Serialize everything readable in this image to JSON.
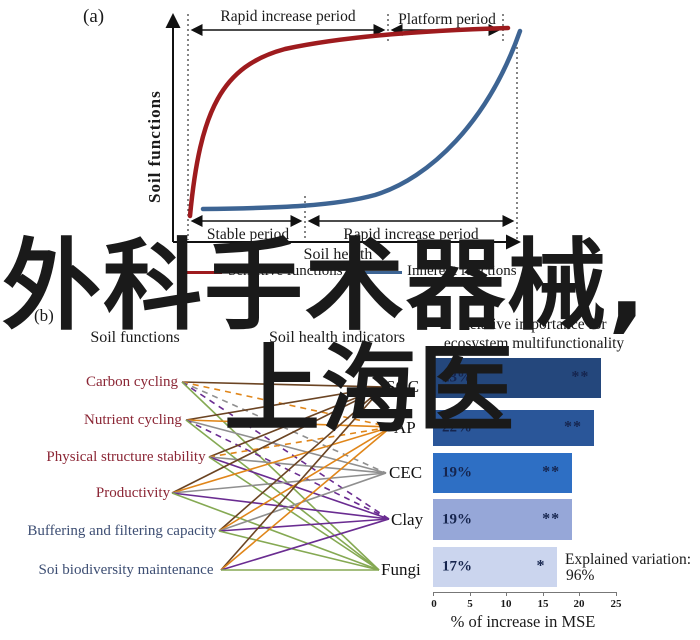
{
  "watermark": {
    "line1": "外科手术器械,",
    "line2": "上海医",
    "color": "#3B9AF8"
  },
  "panel_a": {
    "label": "(a)",
    "y_axis_label": "Soil functions",
    "x_axis_label": "Soil health",
    "period_top_1": "Rapid increase period",
    "period_top_2": "Platform period",
    "period_bottom_1": "Stable period",
    "period_bottom_2": "Rapid increase period",
    "legend": [
      {
        "label": "Sensitive functions",
        "color": "#9E1B1E"
      },
      {
        "label": "Inherent functions",
        "color": "#3D6493"
      }
    ]
  },
  "panel_b": {
    "label": "(b)",
    "col1_header": "Soil functions",
    "col2_header": "Soil health indicators",
    "col3_header_line1": "Relative importance for",
    "col3_header_line2": "ecosystem multifunctionality",
    "functions": [
      {
        "id": "carbon",
        "label": "Carbon cycling",
        "color": "#8B2635"
      },
      {
        "id": "nutrient",
        "label": "Nutrient cycling",
        "color": "#8B2635"
      },
      {
        "id": "physical",
        "label": "Physical structure stability",
        "color": "#8B2635"
      },
      {
        "id": "productivity",
        "label": "Productivity",
        "color": "#8B2635"
      },
      {
        "id": "buffering",
        "label": "Buffering and filtering capacity",
        "color": "#3D4E73"
      },
      {
        "id": "biodiversity",
        "label": "Soi biodiversity maintenance",
        "color": "#3D4E73"
      }
    ],
    "indicators": [
      "SOC",
      "AP",
      "CEC",
      "Clay",
      "Fungi"
    ],
    "network": {
      "colors_by_indicator": {
        "soc": "#6B4423",
        "ap": "#E0861A",
        "cec": "#8F8F8F",
        "clay": "#6A2C91",
        "fungi": "#85A953"
      },
      "edges": [
        {
          "from": "carbon",
          "to": "soc",
          "dashed": false
        },
        {
          "from": "carbon",
          "to": "ap",
          "dashed": true
        },
        {
          "from": "carbon",
          "to": "cec",
          "dashed": true
        },
        {
          "from": "carbon",
          "to": "clay",
          "dashed": true
        },
        {
          "from": "carbon",
          "to": "fungi",
          "dashed": false
        },
        {
          "from": "nutrient",
          "to": "soc",
          "dashed": false
        },
        {
          "from": "nutrient",
          "to": "ap",
          "dashed": false
        },
        {
          "from": "nutrient",
          "to": "cec",
          "dashed": false
        },
        {
          "from": "nutrient",
          "to": "clay",
          "dashed": true
        },
        {
          "from": "nutrient",
          "to": "fungi",
          "dashed": false
        },
        {
          "from": "physical",
          "to": "soc",
          "dashed": false
        },
        {
          "from": "physical",
          "to": "ap",
          "dashed": true
        },
        {
          "from": "physical",
          "to": "cec",
          "dashed": false
        },
        {
          "from": "physical",
          "to": "clay",
          "dashed": false
        },
        {
          "from": "physical",
          "to": "fungi",
          "dashed": false
        },
        {
          "from": "productivity",
          "to": "soc",
          "dashed": false
        },
        {
          "from": "productivity",
          "to": "ap",
          "dashed": false
        },
        {
          "from": "productivity",
          "to": "cec",
          "dashed": false
        },
        {
          "from": "productivity",
          "to": "clay",
          "dashed": false
        },
        {
          "from": "productivity",
          "to": "fungi",
          "dashed": false
        },
        {
          "from": "buffering",
          "to": "soc",
          "dashed": false
        },
        {
          "from": "buffering",
          "to": "ap",
          "dashed": false
        },
        {
          "from": "buffering",
          "to": "cec",
          "dashed": false
        },
        {
          "from": "buffering",
          "to": "clay",
          "dashed": false
        },
        {
          "from": "buffering",
          "to": "fungi",
          "dashed": false
        },
        {
          "from": "biodiversity",
          "to": "soc",
          "dashed": false
        },
        {
          "from": "biodiversity",
          "to": "ap",
          "dashed": false
        },
        {
          "from": "biodiversity",
          "to": "clay",
          "dashed": false
        },
        {
          "from": "biodiversity",
          "to": "fungi",
          "dashed": false
        }
      ]
    },
    "explained_variation_line1": "Explained variation:",
    "explained_variation_line2": "96%"
  },
  "chart_data": [
    {
      "type": "line",
      "title": "",
      "xlabel": "Soil health",
      "ylabel": "Soil functions",
      "series": [
        {
          "name": "Sensitive functions",
          "color": "#9E1B1E",
          "shape": "rapid saturating rise then plateau",
          "annotated_phases": [
            "Rapid increase period",
            "Platform period"
          ]
        },
        {
          "name": "Inherent functions",
          "color": "#3D6493",
          "shape": "flat then accelerating sigmoid rise",
          "annotated_phases": [
            "Stable period",
            "Rapid increase period"
          ]
        }
      ],
      "axes_numeric": false
    },
    {
      "type": "bar",
      "orientation": "horizontal",
      "categories": [
        "SOC",
        "AP",
        "CEC",
        "Clay",
        "Fungi"
      ],
      "values": [
        23,
        22,
        19,
        19,
        17
      ],
      "labels": [
        "23%",
        "22%",
        "19%",
        "19%",
        "17%"
      ],
      "significance": [
        "**",
        "**",
        "**",
        "**",
        "*"
      ],
      "bar_colors": [
        "#24477C",
        "#2A5699",
        "#2E6FC4",
        "#96A7D8",
        "#CBD5EE"
      ],
      "xlabel": "% of increase in MSE",
      "xlim": [
        0,
        25
      ],
      "ticks": [
        "0",
        "5",
        "10",
        "15",
        "20",
        "25"
      ],
      "annotation": "Explained variation: 96%"
    }
  ]
}
